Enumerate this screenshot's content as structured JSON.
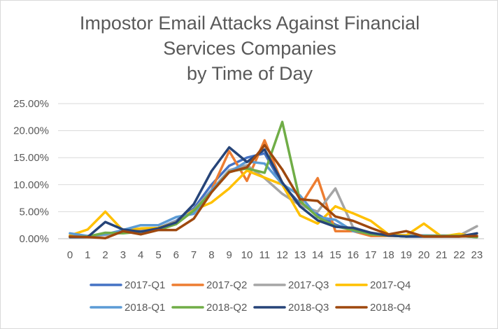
{
  "chart_data": {
    "type": "line",
    "title_lines": [
      "Impostor Email Attacks Against Financial",
      "Services Companies",
      "by Time of Day"
    ],
    "xlabel": "",
    "ylabel": "",
    "ylim": [
      0,
      25
    ],
    "y_ticks": [
      0,
      5,
      10,
      15,
      20,
      25
    ],
    "y_tick_labels": [
      "0.00%",
      "5.00%",
      "10.00%",
      "15.00%",
      "20.00%",
      "25.00%"
    ],
    "grid": true,
    "legend_position": "bottom",
    "x": [
      0,
      1,
      2,
      3,
      4,
      5,
      6,
      7,
      8,
      9,
      10,
      11,
      12,
      13,
      14,
      15,
      16,
      17,
      18,
      19,
      20,
      21,
      22,
      23
    ],
    "x_tick_labels": [
      "0",
      "1",
      "2",
      "3",
      "4",
      "5",
      "6",
      "7",
      "8",
      "9",
      "10",
      "11",
      "12",
      "13",
      "14",
      "15",
      "16",
      "17",
      "18",
      "19",
      "20",
      "21",
      "22",
      "23"
    ],
    "series": [
      {
        "name": "2017-Q1",
        "color": "#4472C4",
        "values": [
          0.4,
          0.4,
          0.9,
          1.2,
          1.6,
          2.0,
          3.3,
          5.6,
          10.0,
          13.5,
          15.0,
          15.8,
          10.0,
          6.5,
          4.5,
          2.6,
          1.5,
          0.9,
          0.6,
          0.4,
          0.4,
          0.4,
          0.4,
          0.5
        ]
      },
      {
        "name": "2017-Q2",
        "color": "#ED7D31",
        "values": [
          0.4,
          0.5,
          0.7,
          1.3,
          1.5,
          2.0,
          3.0,
          5.2,
          9.0,
          16.2,
          10.7,
          18.2,
          10.3,
          6.0,
          11.2,
          1.4,
          1.4,
          0.5,
          0.5,
          0.5,
          0.4,
          0.4,
          0.5,
          0.5
        ]
      },
      {
        "name": "2017-Q3",
        "color": "#A5A5A5",
        "values": [
          0.6,
          0.5,
          0.7,
          1.1,
          1.4,
          2.0,
          3.2,
          5.3,
          9.0,
          12.7,
          13.6,
          11.2,
          8.3,
          6.2,
          5.0,
          9.3,
          2.1,
          1.1,
          0.5,
          0.7,
          0.6,
          0.6,
          0.6,
          2.3
        ]
      },
      {
        "name": "2017-Q4",
        "color": "#FFC000",
        "values": [
          0.6,
          1.7,
          5.0,
          1.5,
          1.9,
          2.0,
          3.0,
          5.3,
          6.7,
          9.3,
          12.6,
          11.3,
          10.0,
          4.3,
          2.8,
          6.0,
          4.7,
          3.3,
          0.8,
          0.6,
          2.8,
          0.4,
          0.9,
          0.3
        ]
      },
      {
        "name": "2018-Q1",
        "color": "#5B9BD5",
        "values": [
          1.0,
          0.5,
          0.8,
          1.6,
          2.5,
          2.5,
          4.0,
          4.6,
          9.0,
          12.3,
          14.3,
          13.9,
          10.1,
          8.0,
          4.0,
          3.5,
          1.4,
          1.0,
          0.6,
          0.4,
          0.6,
          0.5,
          0.5,
          0.3
        ]
      },
      {
        "name": "2018-Q2",
        "color": "#70AD47",
        "values": [
          0.3,
          0.4,
          1.1,
          1.0,
          1.3,
          1.6,
          2.7,
          5.2,
          8.6,
          12.4,
          13.0,
          12.2,
          21.6,
          7.0,
          4.0,
          2.3,
          1.6,
          0.8,
          0.6,
          0.4,
          0.5,
          0.5,
          0.5,
          0.3
        ]
      },
      {
        "name": "2018-Q3",
        "color": "#264478",
        "values": [
          0.3,
          0.3,
          3.1,
          1.7,
          1.3,
          1.9,
          3.0,
          6.4,
          12.5,
          16.9,
          14.2,
          16.5,
          10.4,
          6.0,
          3.4,
          2.2,
          2.0,
          1.1,
          0.6,
          0.4,
          0.4,
          0.4,
          0.4,
          1.0
        ]
      },
      {
        "name": "2018-Q4",
        "color": "#9E480E",
        "values": [
          0.4,
          0.3,
          0.1,
          1.4,
          0.8,
          1.6,
          1.6,
          3.7,
          8.6,
          12.3,
          13.2,
          17.3,
          12.8,
          7.3,
          7.0,
          4.1,
          3.3,
          2.0,
          0.8,
          1.4,
          0.4,
          0.4,
          0.4,
          0.5
        ]
      }
    ]
  }
}
